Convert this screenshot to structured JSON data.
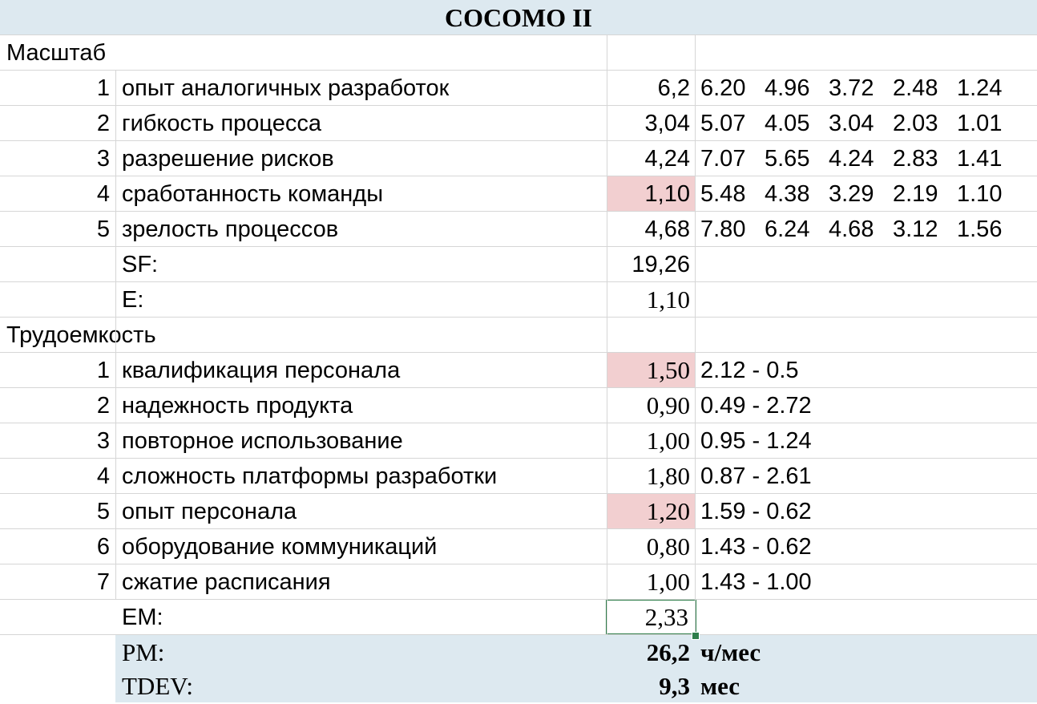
{
  "title": "COCOMO II",
  "scale": {
    "header": "Масштаб",
    "factors": [
      {
        "n": "1",
        "name": "опыт аналогичных разработок",
        "value": "6,2",
        "options": [
          "6.20",
          "4.96",
          "3.72",
          "2.48",
          "1.24"
        ]
      },
      {
        "n": "2",
        "name": "гибкость процесса",
        "value": "3,04",
        "options": [
          "5.07",
          "4.05",
          "3.04",
          "2.03",
          "1.01"
        ]
      },
      {
        "n": "3",
        "name": "разрешение рисков",
        "value": "4,24",
        "options": [
          "7.07",
          "5.65",
          "4.24",
          "2.83",
          "1.41"
        ]
      },
      {
        "n": "4",
        "name": "сработанность команды",
        "value": "1,10",
        "highlight": true,
        "options": [
          "5.48",
          "4.38",
          "3.29",
          "2.19",
          "1.10"
        ]
      },
      {
        "n": "5",
        "name": "зрелость процессов",
        "value": "4,68",
        "options": [
          "7.80",
          "6.24",
          "4.68",
          "3.12",
          "1.56"
        ]
      }
    ],
    "sf_label": "SF:",
    "sf_value": "19,26",
    "e_label": "E:",
    "e_value": "1,10"
  },
  "effort": {
    "header": "Трудоемкость",
    "multipliers": [
      {
        "n": "1",
        "name": "квалификация персонала",
        "value": "1,50",
        "highlight": true,
        "range": "2.12 - 0.5"
      },
      {
        "n": "2",
        "name": "надежность продукта",
        "value": "0,90",
        "range": "0.49 - 2.72"
      },
      {
        "n": "3",
        "name": "повторное использование",
        "value": "1,00",
        "range": "0.95 - 1.24"
      },
      {
        "n": "4",
        "name": "сложность платформы разработки",
        "value": "1,80",
        "range": "0.87 - 2.61"
      },
      {
        "n": "5",
        "name": "опыт персонала",
        "value": "1,20",
        "highlight": true,
        "range": "1.59 - 0.62"
      },
      {
        "n": "6",
        "name": "оборудование коммуникаций",
        "value": "0,80",
        "range": "1.43 - 0.62"
      },
      {
        "n": "7",
        "name": "сжатие расписания",
        "value": "1,00",
        "range": "1.43 - 1.00"
      }
    ],
    "em_label": "EM:",
    "em_value": "2,33"
  },
  "results": {
    "pm_label": "PM:",
    "pm_value": "26,2",
    "pm_unit": "ч/мес",
    "tdev_label": "TDEV:",
    "tdev_value": "9,3",
    "tdev_unit": "мес"
  },
  "colors": {
    "header_fill": "#dde9f0",
    "highlight_fill": "#f2cfd0",
    "selection_border": "#2e7d4a"
  }
}
